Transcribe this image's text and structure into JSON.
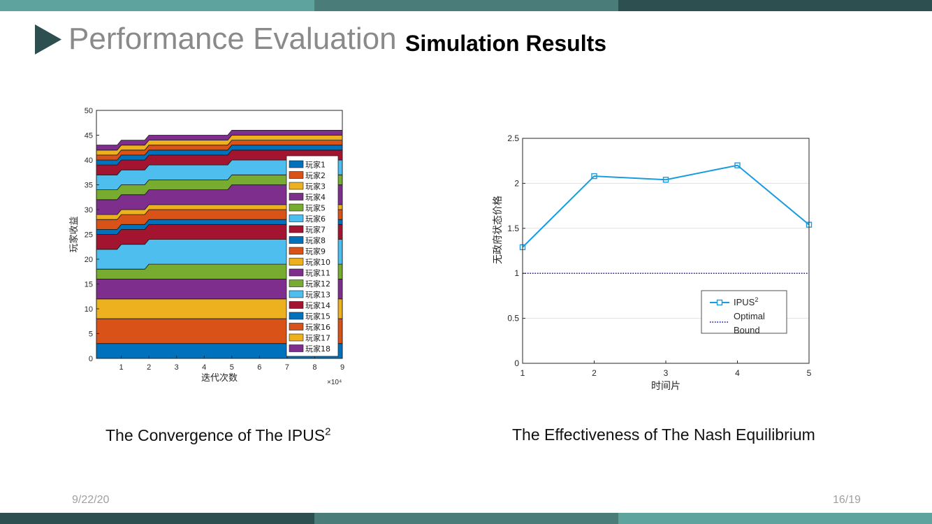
{
  "slide": {
    "title": "Performance Evaluation",
    "subtitle": "Simulation Results",
    "date": "9/22/20",
    "page": "16/19",
    "colors": {
      "bar_light": "#5fa39f",
      "bar_mid": "#4a7d7a",
      "bar_dark": "#2e4f4f"
    }
  },
  "captions": {
    "left_main": "The Convergence of The IPUS",
    "left_sup": "2",
    "right": "The Effectiveness of The Nash Equilibrium"
  },
  "chart_data": [
    {
      "type": "area",
      "stacked": true,
      "xlabel": "迭代次数",
      "ylabel": "玩家收益",
      "x_multiplier": "×10⁴",
      "xlim": [
        0.1,
        9
      ],
      "ylim": [
        0,
        50
      ],
      "xticks": [
        "1",
        "2",
        "3",
        "4",
        "5",
        "6",
        "7",
        "8",
        "9"
      ],
      "yticks": [
        "0",
        "5",
        "10",
        "15",
        "20",
        "25",
        "30",
        "35",
        "40",
        "45",
        "50"
      ],
      "legend_position": "right",
      "x": [
        0.1,
        0.85,
        1.0,
        1.85,
        2.0,
        4.85,
        5.0,
        9.0
      ],
      "series": [
        {
          "name": "玩家1",
          "color": "#0072bd",
          "values": [
            3,
            3,
            3,
            3,
            3,
            3,
            3,
            3
          ]
        },
        {
          "name": "玩家2",
          "color": "#d95319",
          "values": [
            5,
            5,
            5,
            5,
            5,
            5,
            5,
            5
          ]
        },
        {
          "name": "玩家3",
          "color": "#edb120",
          "values": [
            4,
            4,
            4,
            4,
            4,
            4,
            4,
            4
          ]
        },
        {
          "name": "玩家4",
          "color": "#7e2f8e",
          "values": [
            4,
            4,
            4,
            4,
            4,
            4,
            4,
            4
          ]
        },
        {
          "name": "玩家5",
          "color": "#77ac30",
          "values": [
            2,
            2,
            2,
            2,
            3,
            3,
            3,
            3
          ]
        },
        {
          "name": "玩家6",
          "color": "#4dbeee",
          "values": [
            4,
            4,
            5,
            5,
            5,
            5,
            5,
            5
          ]
        },
        {
          "name": "玩家7",
          "color": "#a2142f",
          "values": [
            3,
            3,
            3,
            3,
            3,
            3,
            3,
            3
          ]
        },
        {
          "name": "玩家8",
          "color": "#0072bd",
          "values": [
            1,
            1,
            1,
            1,
            1,
            1,
            1,
            1
          ]
        },
        {
          "name": "玩家9",
          "color": "#d95319",
          "values": [
            2,
            2,
            2,
            2,
            2,
            2,
            2,
            2
          ]
        },
        {
          "name": "玩家10",
          "color": "#edb120",
          "values": [
            1,
            1,
            1,
            1,
            1,
            1,
            1,
            1
          ]
        },
        {
          "name": "玩家11",
          "color": "#7e2f8e",
          "values": [
            3,
            3,
            3,
            3,
            3,
            3,
            4,
            4
          ]
        },
        {
          "name": "玩家12",
          "color": "#77ac30",
          "values": [
            2,
            2,
            2,
            2,
            2,
            2,
            2,
            2
          ]
        },
        {
          "name": "玩家13",
          "color": "#4dbeee",
          "values": [
            3,
            3,
            3,
            3,
            3,
            3,
            3,
            3
          ]
        },
        {
          "name": "玩家14",
          "color": "#a2142f",
          "values": [
            2,
            2,
            2,
            2,
            2,
            2,
            2,
            2
          ]
        },
        {
          "name": "玩家15",
          "color": "#0072bd",
          "values": [
            1,
            1,
            1,
            1,
            1,
            1,
            1,
            1
          ]
        },
        {
          "name": "玩家16",
          "color": "#d95319",
          "values": [
            1,
            1,
            1,
            1,
            1,
            1,
            1,
            1
          ]
        },
        {
          "name": "玩家17",
          "color": "#edb120",
          "values": [
            1,
            1,
            1,
            1,
            1,
            1,
            1,
            1
          ]
        },
        {
          "name": "玩家18",
          "color": "#7e2f8e",
          "values": [
            1,
            1,
            1,
            1,
            1,
            1,
            1,
            1
          ]
        }
      ]
    },
    {
      "type": "line",
      "xlabel": "时间片",
      "ylabel": "无政府状态价格",
      "xlim": [
        1,
        5
      ],
      "ylim": [
        0,
        2.5
      ],
      "xticks": [
        "1",
        "2",
        "3",
        "4",
        "5"
      ],
      "yticks": [
        "0",
        "0.5",
        "1",
        "1.5",
        "2",
        "2.5"
      ],
      "grid": true,
      "legend_position": "bottom-right",
      "series": [
        {
          "name": "IPUS",
          "name_sup": "2",
          "color": "#1a9be0",
          "marker": "square",
          "x": [
            1,
            2,
            3,
            4,
            5
          ],
          "y": [
            1.29,
            2.08,
            2.04,
            2.2,
            1.54
          ]
        },
        {
          "name": "Optimal Bound",
          "name_lines": [
            "Optimal",
            "Bound"
          ],
          "color": "#0000a0",
          "style": "dotted",
          "x": [
            1,
            5
          ],
          "y": [
            1,
            1
          ]
        }
      ]
    }
  ]
}
